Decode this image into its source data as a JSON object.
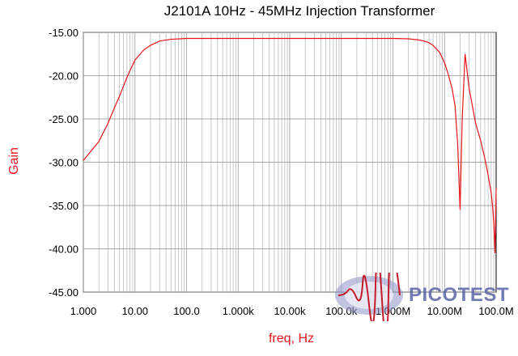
{
  "chart_data": {
    "type": "line",
    "title": "J2101A 10Hz - 45MHz Injection Transformer",
    "xlabel": "freq, Hz",
    "ylabel": "Gain",
    "xscale": "log",
    "xlim": [
      1,
      100000000
    ],
    "ylim": [
      -45,
      -15
    ],
    "grid": true,
    "line_color": "#e8141b",
    "x_tick_labels": [
      "1.000",
      "10.00",
      "100.0",
      "1.000k",
      "10.00k",
      "100.0k",
      "1.000M",
      "10.00M",
      "100.0M"
    ],
    "y_tick_labels": [
      "-15.00",
      "-20.00",
      "-25.00",
      "-30.00",
      "-35.00",
      "-40.00",
      "-45.00"
    ],
    "series": [
      {
        "x": [
          1,
          1.5,
          2,
          3,
          4,
          5,
          6,
          7,
          8,
          9,
          10,
          15,
          20,
          30,
          50,
          100,
          1000,
          10000,
          100000,
          1000000,
          2000000,
          3000000,
          4000000,
          5000000,
          6000000,
          8000000,
          10000000,
          12000000,
          14000000,
          16000000,
          18000000,
          20000000,
          22000000,
          25000000,
          30000000,
          40000000,
          50000000,
          60000000,
          70000000,
          80000000,
          85000000,
          90000000,
          95000000,
          100000000
        ],
        "y": [
          -29.8,
          -28.5,
          -27.6,
          -25.5,
          -23.7,
          -22.4,
          -21.2,
          -20.2,
          -19.4,
          -18.8,
          -18.2,
          -17.0,
          -16.5,
          -16.0,
          -15.8,
          -15.7,
          -15.7,
          -15.7,
          -15.7,
          -15.7,
          -15.75,
          -15.85,
          -16.0,
          -16.2,
          -16.5,
          -17.3,
          -18.5,
          -20.0,
          -21.5,
          -23.5,
          -28.0,
          -35.5,
          -25.0,
          -17.5,
          -21.5,
          -25.5,
          -27.5,
          -29.5,
          -31.5,
          -33.5,
          -35.0,
          -37.0,
          -40.5,
          -33.0
        ]
      }
    ]
  },
  "logo": {
    "text": "PICOTEST",
    "color": "#5b64a8"
  }
}
